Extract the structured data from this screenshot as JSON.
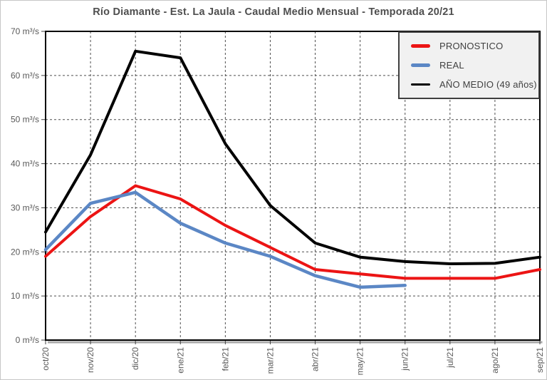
{
  "chart_data": {
    "type": "line",
    "title": "Río Diamante - Est. La Jaula - Caudal Medio Mensual - Temporada 20/21",
    "categories": [
      "oct/20",
      "nov/20",
      "dic/20",
      "ene/21",
      "feb/21",
      "mar/21",
      "abr/21",
      "may/21",
      "jun/21",
      "jul/21",
      "ago/21",
      "sep/21"
    ],
    "y_axis": {
      "min": 0,
      "max": 70,
      "step": 10,
      "unit": "m³/s",
      "tick_labels": [
        "0 m³/s",
        "10 m³/s",
        "20 m³/s",
        "30 m³/s",
        "40 m³/s",
        "50 m³/s",
        "60 m³/s",
        "70 m³/s"
      ]
    },
    "grid": {
      "horizontal": true,
      "vertical": true,
      "style": "dashed",
      "color": "#4d4d4d"
    },
    "legend_position": "top-right",
    "series": [
      {
        "name": "PRONOSTICO",
        "color": "#ec1414",
        "values": [
          19,
          28,
          35,
          32,
          26,
          21,
          16,
          15,
          14,
          14,
          14,
          16
        ]
      },
      {
        "name": "REAL",
        "color": "#5b87c5",
        "values": [
          20.5,
          31,
          33.5,
          26.5,
          22,
          19,
          14.6,
          12,
          12.4,
          null,
          null,
          null
        ]
      },
      {
        "name": "AÑO MEDIO (49 años)",
        "color": "#000000",
        "values": [
          24.5,
          42,
          65.5,
          64,
          44.5,
          30.5,
          22,
          18.8,
          17.8,
          17.3,
          17.4,
          18.8
        ]
      }
    ],
    "colors": {
      "axis_labels": "#595959",
      "title": "#4e4e4e",
      "plot_border": "#000000",
      "shadow": "#ababab",
      "legend_background": "#f1f1f1",
      "legend_border": "#3f3f3f"
    }
  }
}
